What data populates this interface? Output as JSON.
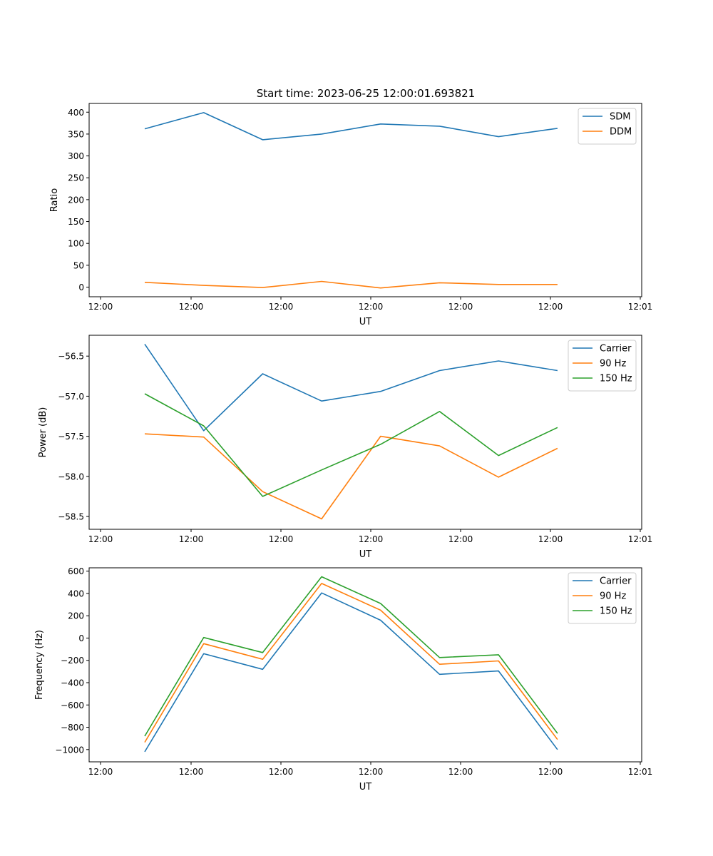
{
  "figure_title": "Start time: 2023-06-25 12:00:01.693821",
  "chart_data": [
    {
      "type": "line",
      "title": "Start time: 2023-06-25 12:00:01.693821",
      "xlabel": "UT",
      "ylabel": "Ratio",
      "x_ticks": [
        "12:00",
        "12:00",
        "12:00",
        "12:00",
        "12:00",
        "12:00",
        "12:01"
      ],
      "x_points": [
        1,
        2,
        3,
        4,
        5,
        6,
        7,
        8
      ],
      "xlim": [
        0,
        9.2
      ],
      "ylim": [
        -22,
        420
      ],
      "y_ticks": [
        0,
        50,
        100,
        150,
        200,
        250,
        300,
        350,
        400
      ],
      "legend": "top-right",
      "series": [
        {
          "name": "SDM",
          "color": "#1f77b4",
          "values": [
            362,
            399,
            337,
            350,
            373,
            368,
            344,
            363
          ]
        },
        {
          "name": "DDM",
          "color": "#ff7f0e",
          "values": [
            11,
            4,
            -1,
            13,
            -2,
            10,
            6,
            6
          ]
        }
      ]
    },
    {
      "type": "line",
      "xlabel": "UT",
      "ylabel": "Power (dB)",
      "x_ticks": [
        "12:00",
        "12:00",
        "12:00",
        "12:00",
        "12:00",
        "12:00",
        "12:01"
      ],
      "x_points": [
        1,
        2,
        3,
        4,
        5,
        6,
        7,
        8
      ],
      "xlim": [
        0,
        9.2
      ],
      "ylim": [
        -58.66,
        -56.24
      ],
      "y_ticks": [
        -56.5,
        -57.0,
        -57.5,
        -58.0,
        -58.5
      ],
      "y_tick_labels": [
        "−56.5",
        "−57.0",
        "−57.5",
        "−58.0",
        "−58.5"
      ],
      "legend": "top-right",
      "series": [
        {
          "name": "Carrier",
          "color": "#1f77b4",
          "values": [
            -56.35,
            -57.43,
            -56.72,
            -57.06,
            -56.94,
            -56.68,
            -56.56,
            -56.68
          ]
        },
        {
          "name": "90 Hz",
          "color": "#ff7f0e",
          "values": [
            -57.47,
            -57.51,
            -58.19,
            -58.53,
            -57.5,
            -57.62,
            -58.01,
            -57.65
          ]
        },
        {
          "name": "150 Hz",
          "color": "#2ca02c",
          "values": [
            -56.97,
            -57.37,
            -58.25,
            -57.92,
            -57.6,
            -57.19,
            -57.74,
            -57.39
          ]
        }
      ]
    },
    {
      "type": "line",
      "xlabel": "UT",
      "ylabel": "Frequency (Hz)",
      "x_ticks": [
        "12:00",
        "12:00",
        "12:00",
        "12:00",
        "12:00",
        "12:00",
        "12:01"
      ],
      "x_points": [
        1,
        2,
        3,
        4,
        5,
        6,
        7,
        8
      ],
      "xlim": [
        0,
        9.2
      ],
      "ylim": [
        -1110,
        630
      ],
      "y_ticks": [
        600,
        400,
        200,
        0,
        -200,
        -400,
        -600,
        -800,
        -1000
      ],
      "y_tick_labels": [
        "600",
        "400",
        "200",
        "0",
        "−200",
        "−400",
        "−600",
        "−800",
        "−1000"
      ],
      "legend": "top-right",
      "series": [
        {
          "name": "Carrier",
          "color": "#1f77b4",
          "values": [
            -1020,
            -140,
            -280,
            405,
            160,
            -325,
            -295,
            -1000
          ]
        },
        {
          "name": "90 Hz",
          "color": "#ff7f0e",
          "values": [
            -935,
            -50,
            -190,
            490,
            250,
            -235,
            -205,
            -910
          ]
        },
        {
          "name": "150 Hz",
          "color": "#2ca02c",
          "values": [
            -880,
            5,
            -130,
            550,
            310,
            -175,
            -150,
            -855
          ]
        }
      ]
    }
  ]
}
